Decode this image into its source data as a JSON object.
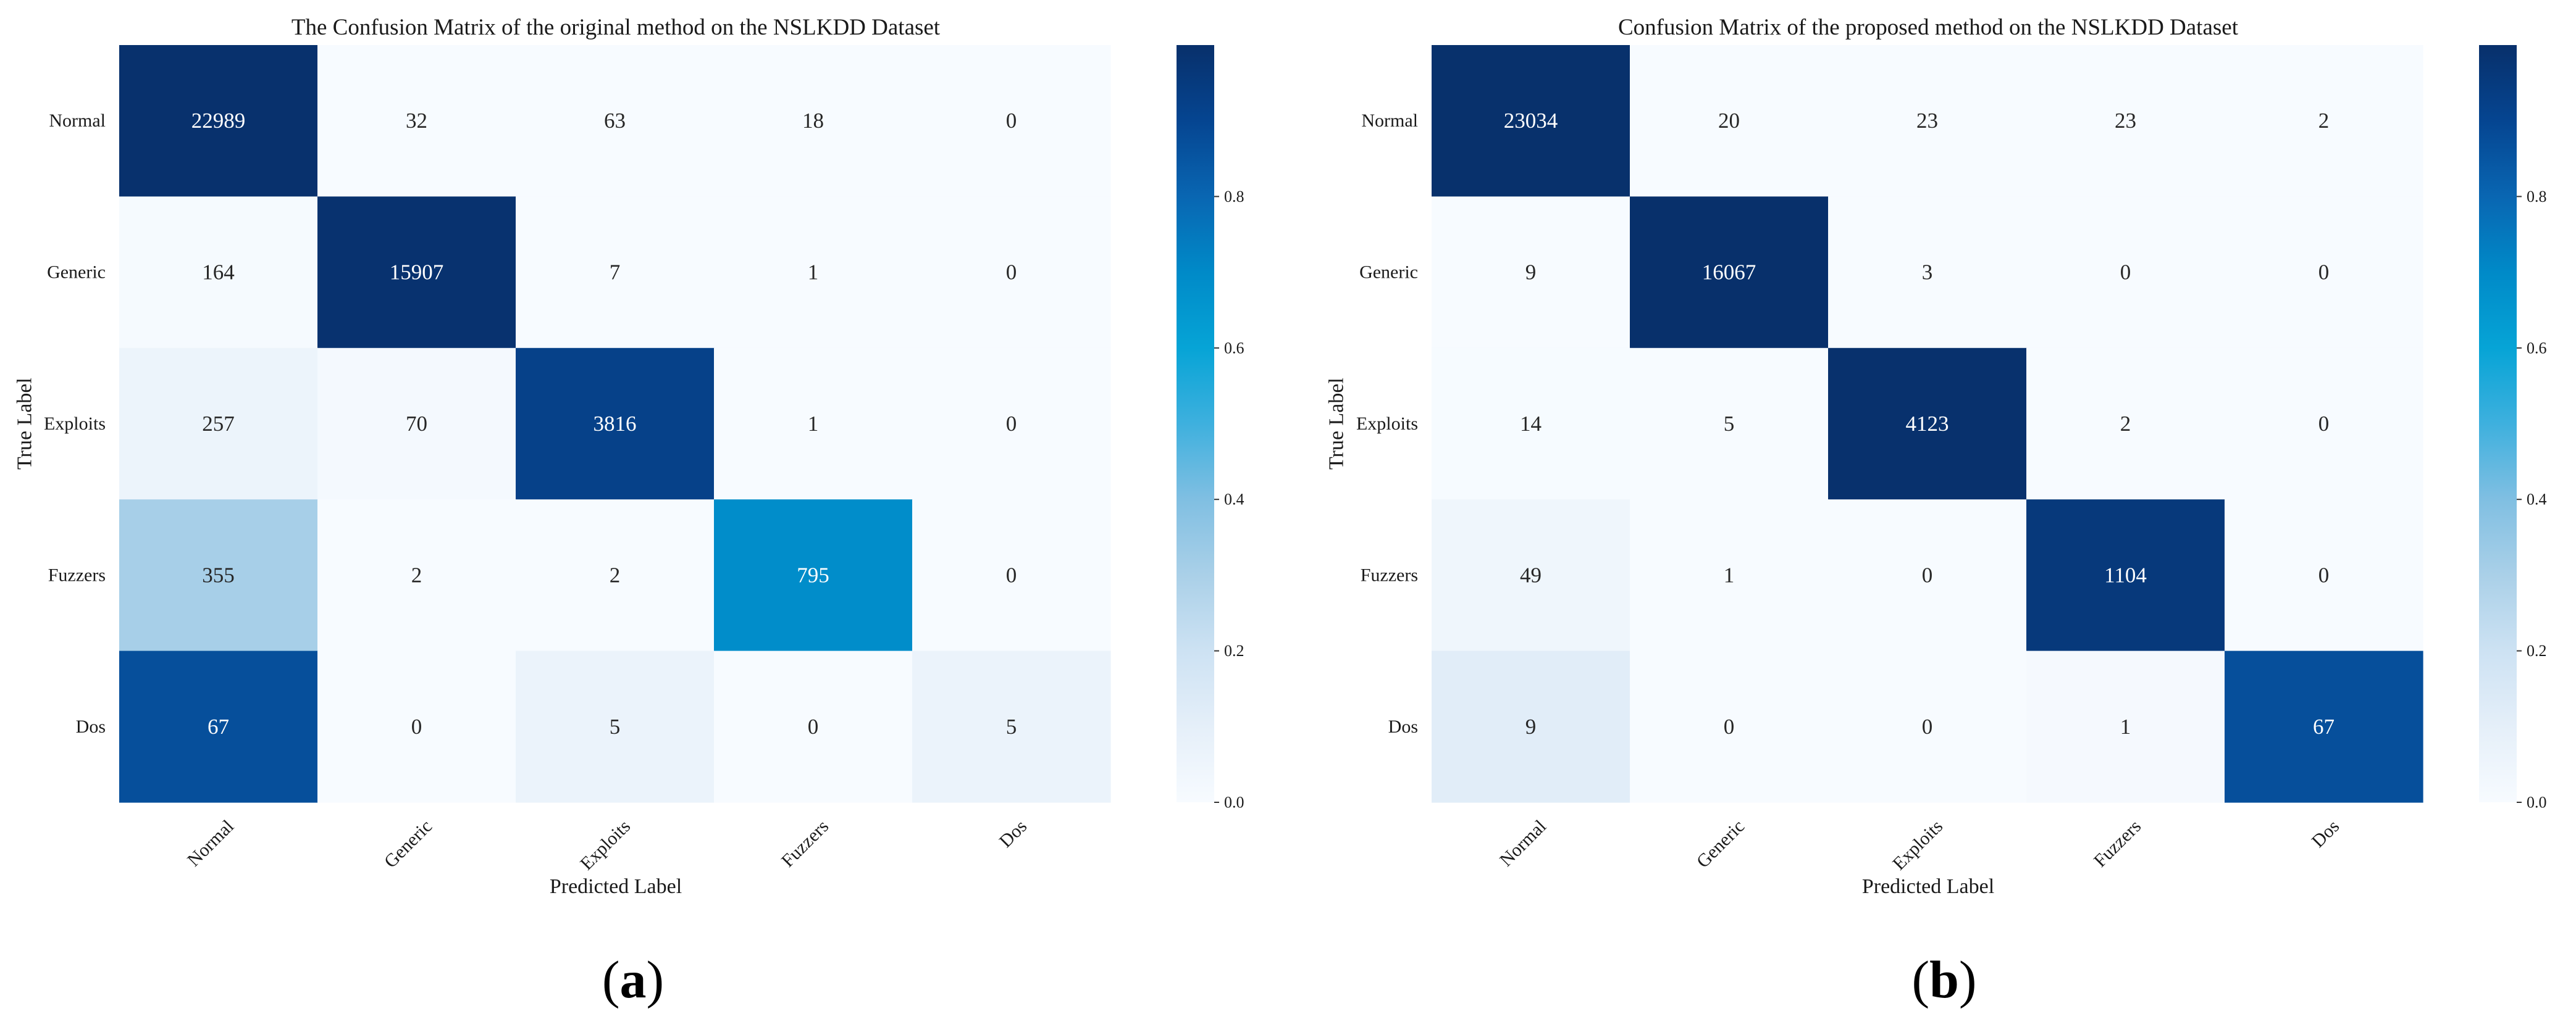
{
  "chart_data": [
    {
      "type": "heatmap",
      "title": "The Confusion Matrix of the original method on the NSLKDD Dataset",
      "xlabel": "Predicted Label",
      "ylabel": "True Label",
      "row_labels": [
        "Normal",
        "Generic",
        "Exploits",
        "Fuzzers",
        "Dos"
      ],
      "col_labels": [
        "Normal",
        "Generic",
        "Exploits",
        "Fuzzers",
        "Dos"
      ],
      "values": [
        [
          22989,
          32,
          63,
          18,
          0
        ],
        [
          164,
          15907,
          7,
          1,
          0
        ],
        [
          257,
          70,
          3816,
          1,
          0
        ],
        [
          355,
          2,
          2,
          795,
          0
        ],
        [
          67,
          0,
          5,
          0,
          5
        ]
      ],
      "color_normalization": "row",
      "colormap": "Blues",
      "colorbar_range": [
        0,
        1
      ],
      "colorbar_ticks": [
        "0.0",
        "0.2",
        "0.4",
        "0.6",
        "0.8"
      ],
      "panel_label": {
        "open": "(",
        "letter": "a",
        "close": ")"
      }
    },
    {
      "type": "heatmap",
      "title": "Confusion Matrix of the proposed method on the NSLKDD Dataset",
      "xlabel": "Predicted Label",
      "ylabel": "True Label",
      "row_labels": [
        "Normal",
        "Generic",
        "Exploits",
        "Fuzzers",
        "Dos"
      ],
      "col_labels": [
        "Normal",
        "Generic",
        "Exploits",
        "Fuzzers",
        "Dos"
      ],
      "values": [
        [
          23034,
          20,
          23,
          23,
          2
        ],
        [
          9,
          16067,
          3,
          0,
          0
        ],
        [
          14,
          5,
          4123,
          2,
          0
        ],
        [
          49,
          1,
          0,
          1104,
          0
        ],
        [
          9,
          0,
          0,
          1,
          67
        ]
      ],
      "color_normalization": "row",
      "colormap": "Blues",
      "colorbar_range": [
        0,
        1
      ],
      "colorbar_ticks": [
        "0.0",
        "0.2",
        "0.4",
        "0.6",
        "0.8"
      ],
      "panel_label": {
        "open": "(",
        "letter": "b",
        "close": ")"
      }
    }
  ]
}
